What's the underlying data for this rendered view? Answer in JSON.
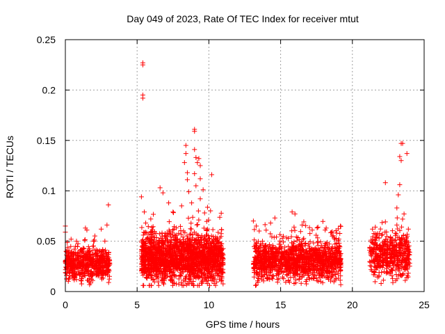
{
  "chart_data": {
    "type": "scatter",
    "title": "Day 049 of 2023, Rate Of TEC Index for receiver mtut",
    "xlabel": "GPS time / hours",
    "ylabel": "ROTI / TECUs",
    "xlim": [
      0,
      25
    ],
    "ylim": [
      0,
      0.25
    ],
    "xticks": [
      0,
      5,
      10,
      15,
      20,
      25
    ],
    "yticks": [
      0,
      0.05,
      0.1,
      0.15,
      0.2,
      0.25
    ],
    "xtick_labels": [
      "0",
      "5",
      "10",
      "15",
      "20",
      "25"
    ],
    "ytick_labels": [
      "0",
      "0.05",
      "0.1",
      "0.15",
      "0.2",
      "0.25"
    ],
    "grid": true,
    "marker": "plus",
    "color": "#ff0000",
    "series": [
      {
        "segments": [
          {
            "x_range": [
              0.0,
              3.1
            ],
            "base": 0.027,
            "spread": 0.022,
            "count": 600
          },
          {
            "x_range": [
              5.3,
              11.0
            ],
            "base": 0.033,
            "spread": 0.035,
            "count": 1800
          },
          {
            "x_range": [
              13.1,
              19.2
            ],
            "base": 0.03,
            "spread": 0.028,
            "count": 1300
          },
          {
            "x_range": [
              21.2,
              24.0
            ],
            "base": 0.036,
            "spread": 0.03,
            "count": 500
          }
        ],
        "outliers": [
          [
            0.0,
            0.065
          ],
          [
            0.0,
            0.059
          ],
          [
            0.4,
            0.052
          ],
          [
            1.4,
            0.063
          ],
          [
            1.5,
            0.061
          ],
          [
            2.5,
            0.062
          ],
          [
            2.9,
            0.066
          ],
          [
            3.0,
            0.086
          ],
          [
            5.4,
            0.227
          ],
          [
            5.4,
            0.225
          ],
          [
            5.4,
            0.195
          ],
          [
            5.4,
            0.192
          ],
          [
            5.3,
            0.094
          ],
          [
            5.5,
            0.079
          ],
          [
            5.6,
            0.068
          ],
          [
            6.6,
            0.103
          ],
          [
            6.8,
            0.098
          ],
          [
            7.2,
            0.088
          ],
          [
            7.5,
            0.079
          ],
          [
            8.1,
            0.085
          ],
          [
            8.4,
            0.145
          ],
          [
            8.4,
            0.137
          ],
          [
            8.3,
            0.128
          ],
          [
            8.5,
            0.118
          ],
          [
            8.5,
            0.111
          ],
          [
            8.6,
            0.099
          ],
          [
            8.8,
            0.088
          ],
          [
            9.0,
            0.161
          ],
          [
            9.0,
            0.159
          ],
          [
            9.0,
            0.141
          ],
          [
            9.1,
            0.133
          ],
          [
            9.2,
            0.128
          ],
          [
            9.0,
            0.117
          ],
          [
            9.3,
            0.132
          ],
          [
            9.4,
            0.125
          ],
          [
            9.4,
            0.112
          ],
          [
            9.1,
            0.105
          ],
          [
            9.6,
            0.101
          ],
          [
            10.2,
            0.116
          ],
          [
            9.4,
            0.092
          ],
          [
            9.7,
            0.078
          ],
          [
            9.9,
            0.062
          ],
          [
            13.1,
            0.07
          ],
          [
            13.3,
            0.065
          ],
          [
            14.3,
            0.068
          ],
          [
            14.6,
            0.073
          ],
          [
            15.8,
            0.079
          ],
          [
            16.0,
            0.077
          ],
          [
            16.5,
            0.066
          ],
          [
            17.2,
            0.061
          ],
          [
            17.6,
            0.064
          ],
          [
            18.9,
            0.058
          ],
          [
            18.6,
            0.055
          ],
          [
            21.4,
            0.062
          ],
          [
            21.6,
            0.064
          ],
          [
            22.3,
            0.108
          ],
          [
            23.1,
            0.083
          ],
          [
            23.2,
            0.096
          ],
          [
            23.3,
            0.106
          ],
          [
            23.3,
            0.134
          ],
          [
            23.4,
            0.13
          ],
          [
            23.4,
            0.147
          ],
          [
            23.5,
            0.147
          ],
          [
            23.8,
            0.137
          ],
          [
            23.6,
            0.077
          ],
          [
            23.1,
            0.066
          ],
          [
            23.9,
            0.062
          ]
        ]
      }
    ]
  }
}
